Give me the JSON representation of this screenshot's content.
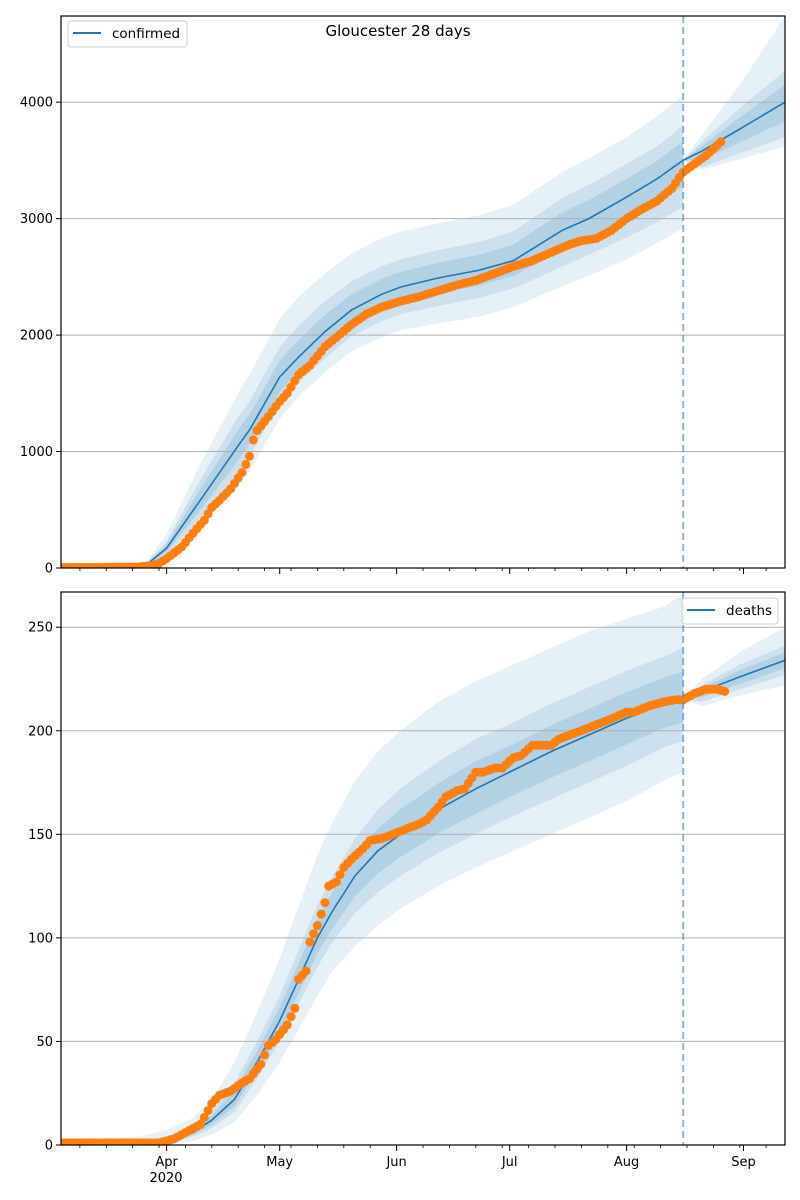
{
  "chart_data": [
    {
      "type": "line",
      "title": "Gloucester 28 days",
      "legend": {
        "entries": [
          "confirmed"
        ],
        "placement": "top-left"
      },
      "xlabel": "",
      "ylabel": "",
      "x_units": "days since 2020-03-04",
      "xlim": [
        0,
        192
      ],
      "ylim": [
        0,
        4740
      ],
      "grid": "y",
      "yticks": [
        0,
        1000,
        2000,
        3000,
        4000
      ],
      "ytick_labels": [
        "0",
        "1000",
        "2000",
        "3000",
        "4000"
      ],
      "xticks": [
        28,
        58,
        89,
        119,
        150,
        181
      ],
      "xtick_labels": [
        "",
        "",
        "",
        "",
        "",
        ""
      ],
      "forecast_start_day": 165,
      "colors": {
        "model": "#1f77b4",
        "observed": "#ff7f0e",
        "band": "#1f77b4",
        "grid": "#b0b0b0",
        "vline": "#1f77b4"
      },
      "model": {
        "name": "confirmed",
        "x": [
          0,
          16,
          22,
          28,
          37,
          47,
          50,
          58,
          63,
          70,
          77,
          85,
          90,
          100,
          111,
          120,
          133,
          140,
          150,
          158,
          165,
          170,
          180,
          192
        ],
        "median": [
          0,
          2,
          10,
          170,
          585,
          1050,
          1185,
          1640,
          1811,
          2030,
          2215,
          2350,
          2412,
          2490,
          2558,
          2640,
          2901,
          3000,
          3185,
          3340,
          3502,
          3580,
          3770,
          4000
        ],
        "bands": [
          {
            "lower": [
              0,
              0,
              2,
              110,
              430,
              820,
              960,
              1410,
              1590,
              1800,
              1990,
              2120,
              2180,
              2250,
              2320,
              2400,
              2590,
              2690,
              2840,
              2970,
              3100,
              3440,
              3560,
              3700
            ],
            "upper": [
              5,
              8,
              20,
              230,
              760,
              1300,
              1430,
              1900,
              2080,
              2290,
              2460,
              2590,
              2650,
              2730,
              2800,
              2890,
              3180,
              3290,
              3470,
              3620,
              3800,
              3660,
              3950,
              4270
            ]
          },
          {
            "lower": [
              0,
              0,
              1,
              80,
              360,
              700,
              830,
              1280,
              1470,
              1680,
              1860,
              1980,
              2040,
              2100,
              2160,
              2240,
              2420,
              2510,
              2650,
              2790,
              2920,
              3420,
              3510,
              3620
            ],
            "upper": [
              10,
              14,
              30,
              290,
              900,
              1500,
              1660,
              2140,
              2330,
              2530,
              2700,
              2830,
              2890,
              2960,
              3030,
              3120,
              3400,
              3520,
              3700,
              3880,
              4060,
              3720,
              4150,
              4740
            ]
          }
        ]
      },
      "observed": {
        "name": "confirmed observed",
        "x": [
          0,
          10,
          20,
          24,
          26,
          28,
          30,
          32,
          35,
          38,
          40,
          42,
          45,
          48,
          50,
          51,
          52,
          55,
          58,
          60,
          63,
          66,
          70,
          73,
          77,
          81,
          85,
          90,
          95,
          100,
          105,
          110,
          115,
          120,
          125,
          130,
          135,
          138,
          142,
          146,
          150,
          154,
          158,
          162,
          165,
          168,
          171,
          175
        ],
        "y": [
          5,
          5,
          8,
          20,
          40,
          80,
          130,
          180,
          300,
          410,
          520,
          580,
          680,
          820,
          960,
          1100,
          1180,
          1300,
          1430,
          1500,
          1660,
          1740,
          1900,
          1980,
          2090,
          2180,
          2240,
          2290,
          2330,
          2380,
          2430,
          2470,
          2530,
          2590,
          2640,
          2710,
          2780,
          2810,
          2830,
          2900,
          3000,
          3080,
          3150,
          3260,
          3400,
          3470,
          3540,
          3660
        ]
      }
    },
    {
      "type": "line",
      "title": "",
      "legend": {
        "entries": [
          "deaths"
        ],
        "placement": "top-right"
      },
      "xlabel": "",
      "ylabel": "",
      "x_units": "days since 2020-03-04",
      "xlim": [
        0,
        192
      ],
      "ylim": [
        0,
        267
      ],
      "grid": "y",
      "yticks": [
        0,
        50,
        100,
        150,
        200,
        250
      ],
      "ytick_labels": [
        "0",
        "50",
        "100",
        "150",
        "200",
        "250"
      ],
      "xticks": [
        28,
        58,
        89,
        119,
        150,
        181
      ],
      "xtick_labels": [
        "Apr",
        "May",
        "Jun",
        "Jul",
        "Aug",
        "Sep"
      ],
      "xtick_year_label": "2020",
      "forecast_start_day": 165,
      "colors": {
        "model": "#1f77b4",
        "observed": "#ff7f0e",
        "band": "#1f77b4",
        "grid": "#b0b0b0",
        "vline": "#1f77b4"
      },
      "model": {
        "name": "deaths",
        "x": [
          0,
          20,
          28,
          35,
          40,
          46,
          52,
          58,
          63,
          68,
          72,
          78,
          84,
          90,
          100,
          110,
          120,
          130,
          140,
          150,
          160,
          165,
          170,
          180,
          192
        ],
        "median": [
          0,
          0.5,
          2,
          6,
          12,
          22,
          40,
          60,
          80,
          100,
          113,
          130,
          142,
          150,
          162,
          172,
          181,
          190,
          198,
          206,
          213,
          215,
          219,
          226,
          234
        ],
        "bands": [
          {
            "lower": [
              0,
              0,
              1,
              4,
              8,
              16,
              32,
              50,
              68,
              86,
              98,
              112,
              122,
              130,
              141,
              150,
              159,
              167,
              175,
              183,
              192,
              195,
              214,
              220,
              227
            ],
            "upper": [
              1,
              2,
              4,
              9,
              16,
              30,
              50,
              72,
              94,
              116,
              130,
              148,
              162,
              172,
              185,
              196,
              204,
              213,
              221,
              229,
              236,
              240,
              222,
              232,
              241
            ]
          },
          {
            "lower": [
              0,
              0,
              0,
              2,
              5,
              11,
              24,
              40,
              56,
              72,
              84,
              96,
              106,
              114,
              125,
              134,
              142,
              150,
              158,
              166,
              176,
              180,
              212,
              217,
              222
            ],
            "upper": [
              3,
              4,
              7,
              13,
              22,
              40,
              64,
              90,
              115,
              140,
              156,
              176,
              190,
              200,
              214,
              224,
              232,
              240,
              248,
              254,
              260,
              266,
              225,
              238,
              250
            ]
          }
        ]
      },
      "observed": {
        "name": "deaths observed",
        "x": [
          0,
          10,
          20,
          26,
          30,
          33,
          35,
          37,
          40,
          42,
          45,
          48,
          50,
          53,
          55,
          57,
          60,
          62,
          63,
          65,
          66,
          68,
          70,
          71,
          73,
          75,
          77,
          80,
          82,
          85,
          88,
          92,
          95,
          97,
          100,
          102,
          105,
          107,
          110,
          112,
          115,
          117,
          120,
          122,
          125,
          127,
          130,
          132,
          135,
          138,
          142,
          145,
          150,
          152,
          156,
          160,
          163,
          165,
          168,
          171,
          174,
          176
        ],
        "y": [
          1,
          1,
          1,
          1,
          3,
          6,
          8,
          10,
          20,
          24,
          26,
          30,
          32,
          39,
          48,
          51,
          58,
          66,
          80,
          84,
          98,
          106,
          117,
          125,
          127,
          134,
          138,
          143,
          147,
          148,
          150,
          153,
          155,
          157,
          163,
          168,
          171,
          172,
          180,
          180,
          182,
          182,
          187,
          188,
          193,
          193,
          193,
          196,
          198,
          200,
          203,
          205,
          209,
          209,
          212,
          214,
          215,
          215,
          218,
          220,
          220,
          219
        ]
      }
    }
  ]
}
